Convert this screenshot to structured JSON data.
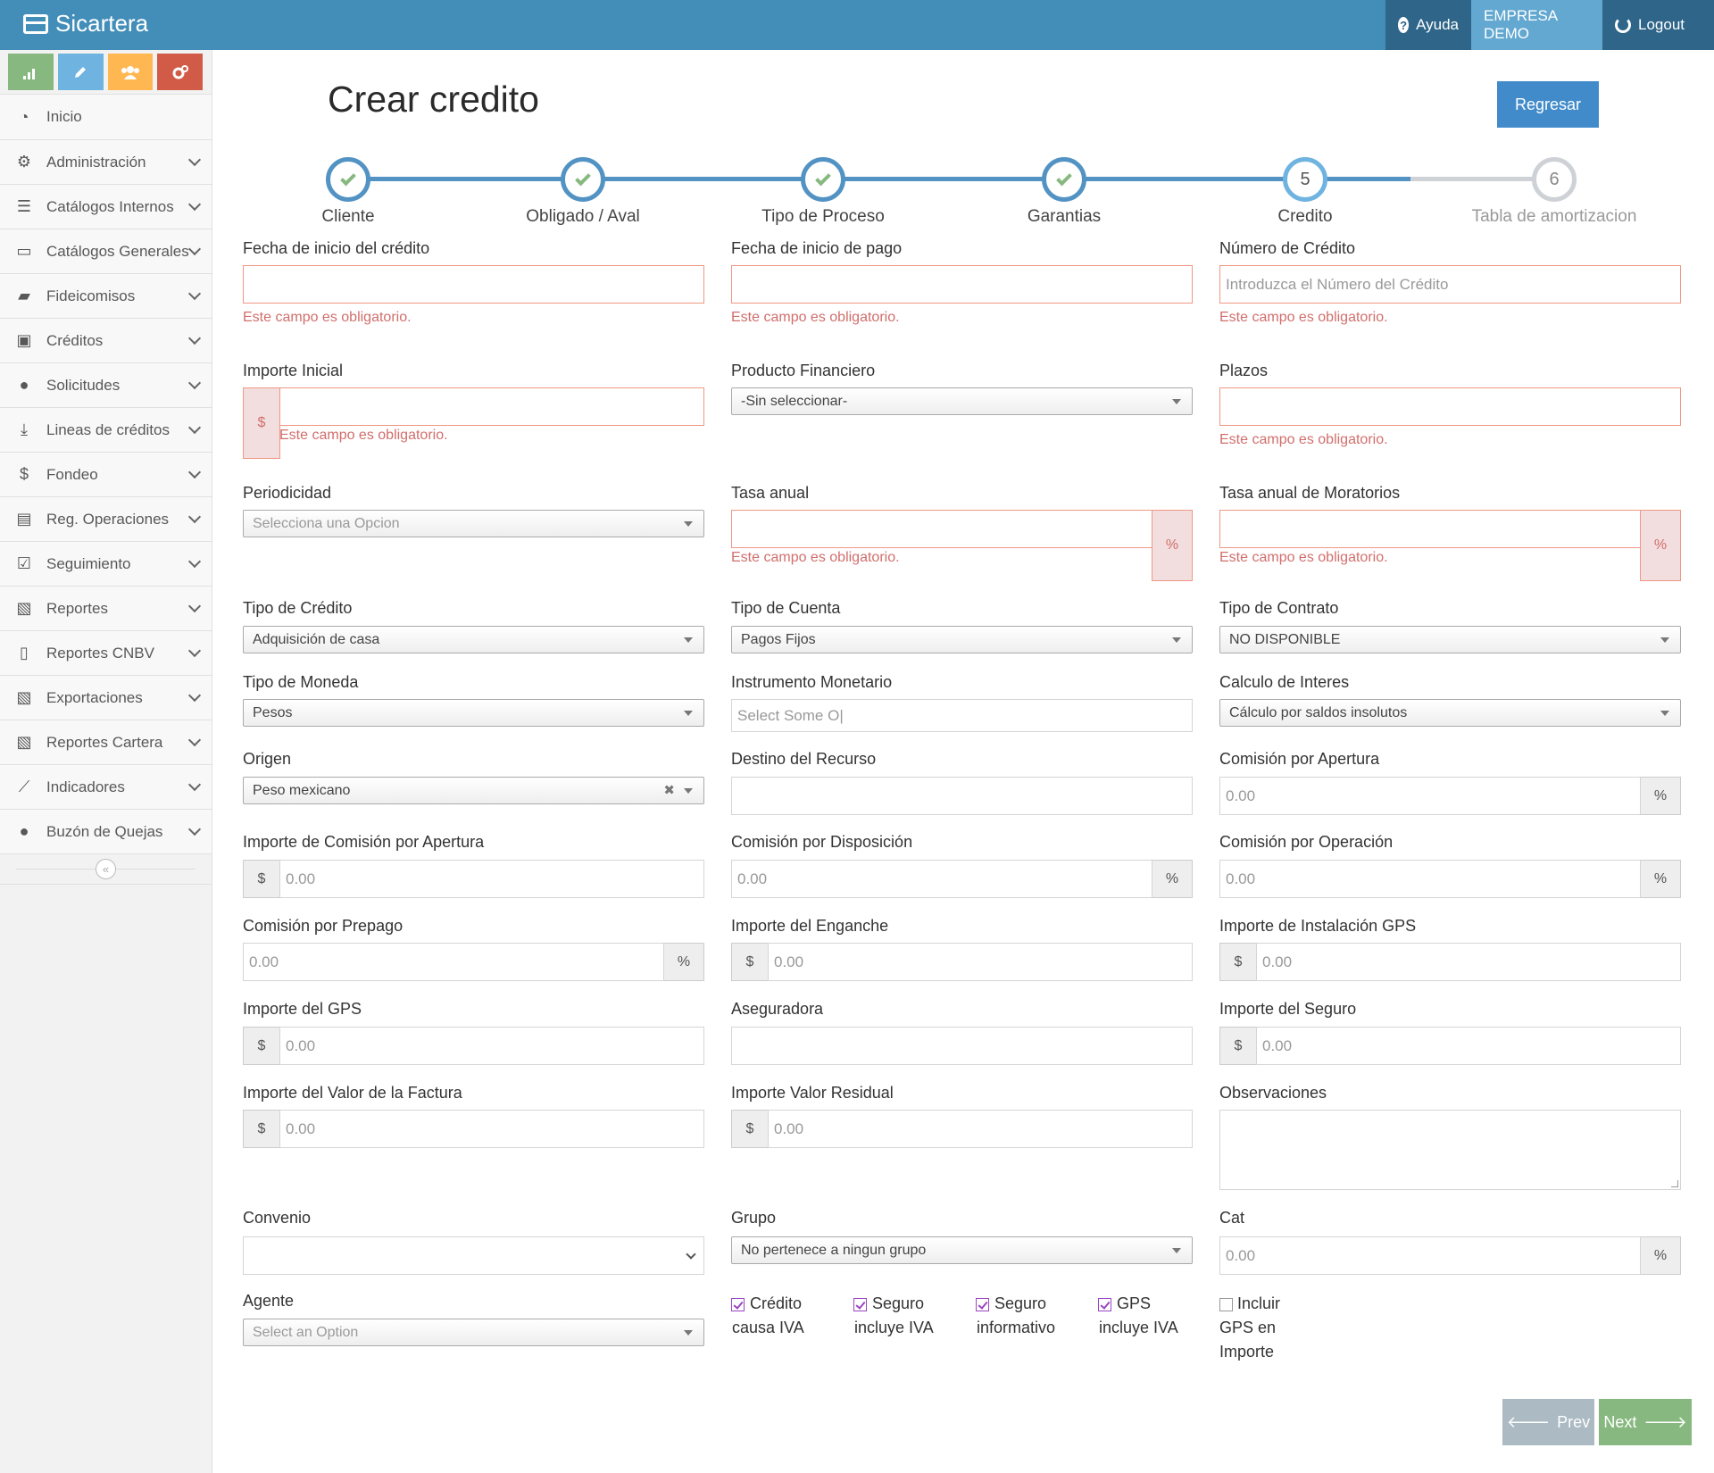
{
  "app": {
    "brand": "Sicartera",
    "help": "Ayuda",
    "company": "EMPRESA DEMO",
    "logout": "Logout"
  },
  "sidebar": {
    "items": [
      {
        "label": "Inicio",
        "icon": "dashboard-icon"
      },
      {
        "label": "Administración",
        "icon": "cogs-icon"
      },
      {
        "label": "Catálogos Internos",
        "icon": "database-icon"
      },
      {
        "label": "Catálogos Generales",
        "icon": "desktop-icon"
      },
      {
        "label": "Fideicomisos",
        "icon": "folder-open-icon"
      },
      {
        "label": "Créditos",
        "icon": "briefcase-icon"
      },
      {
        "label": "Solicitudes",
        "icon": "user-icon"
      },
      {
        "label": "Lineas de créditos",
        "icon": "download-icon"
      },
      {
        "label": "Fondeo",
        "icon": "dollar-icon"
      },
      {
        "label": "Reg. Operaciones",
        "icon": "file-text-icon"
      },
      {
        "label": "Seguimiento",
        "icon": "check-square-icon"
      },
      {
        "label": "Reportes",
        "icon": "file-excel-icon"
      },
      {
        "label": "Reportes CNBV",
        "icon": "file-icon"
      },
      {
        "label": "Exportaciones",
        "icon": "file-excel-icon"
      },
      {
        "label": "Reportes Cartera",
        "icon": "file-excel-icon"
      },
      {
        "label": "Indicadores",
        "icon": "line-chart-icon"
      },
      {
        "label": "Buzón de Quejas",
        "icon": "comment-icon"
      }
    ],
    "shortcut_colors": [
      "#87b87f",
      "#6fb3e0",
      "#ffb752",
      "#d15b47"
    ]
  },
  "page": {
    "title": "Crear credito",
    "back_button": "Regresar",
    "prev": "Prev",
    "next": "Next"
  },
  "wizard": {
    "steps": [
      {
        "label": "Cliente",
        "state": "done"
      },
      {
        "label": "Obligado / Aval",
        "state": "done"
      },
      {
        "label": "Tipo de Proceso",
        "state": "done"
      },
      {
        "label": "Garantias",
        "state": "done"
      },
      {
        "label": "Credito",
        "state": "active",
        "num": "5"
      },
      {
        "label": "Tabla de amortizacion",
        "state": "pending",
        "num": "6"
      }
    ]
  },
  "form": {
    "required_msg": "Este campo es obligatorio.",
    "fecha_inicio": {
      "label": "Fecha de inicio del crédito"
    },
    "fecha_pago": {
      "label": "Fecha de inicio de pago"
    },
    "numero": {
      "label": "Número de Crédito",
      "placeholder": "Introduzca el Número del Crédito"
    },
    "importe_inicial": {
      "label": "Importe Inicial",
      "addon": "$"
    },
    "producto": {
      "label": "Producto Financiero",
      "value": "-Sin seleccionar-"
    },
    "plazos": {
      "label": "Plazos"
    },
    "periodicidad": {
      "label": "Periodicidad",
      "value": "Selecciona una Opcion"
    },
    "tasa_anual": {
      "label": "Tasa anual",
      "addon": "%"
    },
    "tasa_moratorios": {
      "label": "Tasa anual de Moratorios",
      "addon": "%"
    },
    "tipo_credito": {
      "label": "Tipo de Crédito",
      "value": "Adquisición de casa"
    },
    "tipo_cuenta": {
      "label": "Tipo de Cuenta",
      "value": "Pagos Fijos"
    },
    "tipo_contrato": {
      "label": "Tipo de Contrato",
      "value": "NO DISPONIBLE"
    },
    "tipo_moneda": {
      "label": "Tipo de Moneda",
      "value": "Pesos"
    },
    "instrumento": {
      "label": "Instrumento Monetario",
      "placeholder": "Select Some O|"
    },
    "calculo": {
      "label": "Calculo de Interes",
      "value": "Cálculo por saldos insolutos"
    },
    "origen": {
      "label": "Origen",
      "value": "Peso mexicano"
    },
    "destino": {
      "label": "Destino del Recurso"
    },
    "comision_apertura": {
      "label": "Comisión por Apertura",
      "value": "0.00",
      "addon": "%"
    },
    "importe_comision_apertura": {
      "label": "Importe de Comisión por Apertura",
      "value": "0.00",
      "addon": "$"
    },
    "comision_disposicion": {
      "label": "Comisión por Disposición",
      "value": "0.00",
      "addon": "%"
    },
    "comision_operacion": {
      "label": "Comisión por Operación",
      "value": "0.00",
      "addon": "%"
    },
    "comision_prepago": {
      "label": "Comisión por Prepago",
      "value": "0.00",
      "addon": "%"
    },
    "importe_enganche": {
      "label": "Importe del Enganche",
      "value": "0.00",
      "addon": "$"
    },
    "importe_gps_instalacion": {
      "label": "Importe de Instalación GPS",
      "value": "0.00",
      "addon": "$"
    },
    "importe_gps": {
      "label": "Importe del GPS",
      "value": "0.00",
      "addon": "$"
    },
    "aseguradora": {
      "label": "Aseguradora"
    },
    "importe_seguro": {
      "label": "Importe del Seguro",
      "value": "0.00",
      "addon": "$"
    },
    "valor_factura": {
      "label": "Importe del Valor de la Factura",
      "value": "0.00",
      "addon": "$"
    },
    "valor_residual": {
      "label": "Importe Valor Residual",
      "value": "0.00",
      "addon": "$"
    },
    "observaciones": {
      "label": "Observaciones"
    },
    "convenio": {
      "label": "Convenio"
    },
    "grupo": {
      "label": "Grupo",
      "value": "No pertenece a ningun grupo"
    },
    "cat": {
      "label": "Cat",
      "value": "0.00",
      "addon": "%"
    },
    "agente": {
      "label": "Agente",
      "value": "Select an Option"
    },
    "checks": [
      {
        "line1": "Crédito",
        "line2": "causa IVA",
        "checked": true
      },
      {
        "line1": "Seguro",
        "line2": "incluye IVA",
        "checked": true
      },
      {
        "line1": "Seguro",
        "line2": "informativo",
        "checked": true
      },
      {
        "line1": "GPS",
        "line2": "incluye IVA",
        "checked": true
      }
    ],
    "gps_check": {
      "line1": "Incluir",
      "line2": "GPS en",
      "line3": "Importe",
      "checked": false
    }
  }
}
